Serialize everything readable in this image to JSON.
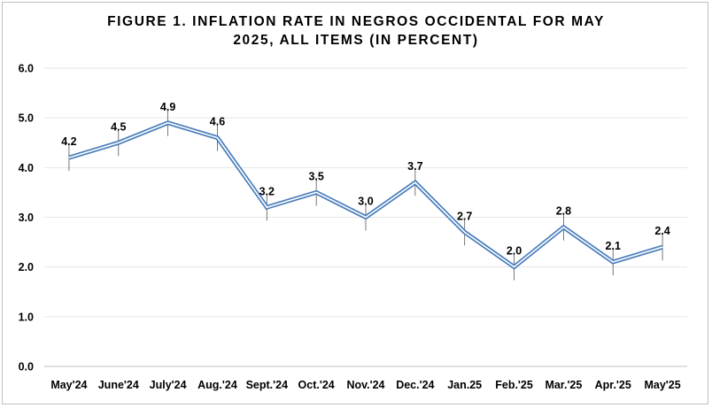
{
  "chart_data": {
    "type": "line",
    "title_line1": "FIGURE 1. INFLATION RATE IN NEGROS OCCIDENTAL FOR MAY",
    "title_line2": "2025, ALL ITEMS (IN PERCENT)",
    "categories": [
      "May'24",
      "June'24",
      "July'24",
      "Aug.'24",
      "Sept.'24",
      "Oct.'24",
      "Nov.'24",
      "Dec.'24",
      "Jan.25",
      "Feb.'25",
      "Mar.'25",
      "Apr.'25",
      "May'25"
    ],
    "values": [
      4.2,
      4.5,
      4.9,
      4.6,
      3.2,
      3.5,
      3.0,
      3.7,
      2.7,
      2.0,
      2.8,
      2.1,
      2.4
    ],
    "value_labels": [
      "4.2",
      "4.5",
      "4.9",
      "4.6",
      "3.2",
      "3.5",
      "3.0",
      "3.7",
      "2.7",
      "2.0",
      "2.8",
      "2.1",
      "2.4"
    ],
    "y_ticks": [
      "0.0",
      "1.0",
      "2.0",
      "3.0",
      "4.0",
      "5.0",
      "6.0"
    ],
    "ylim": [
      0,
      6
    ],
    "grid": true,
    "line_color": "#4a7ebb",
    "error_bars": true
  }
}
